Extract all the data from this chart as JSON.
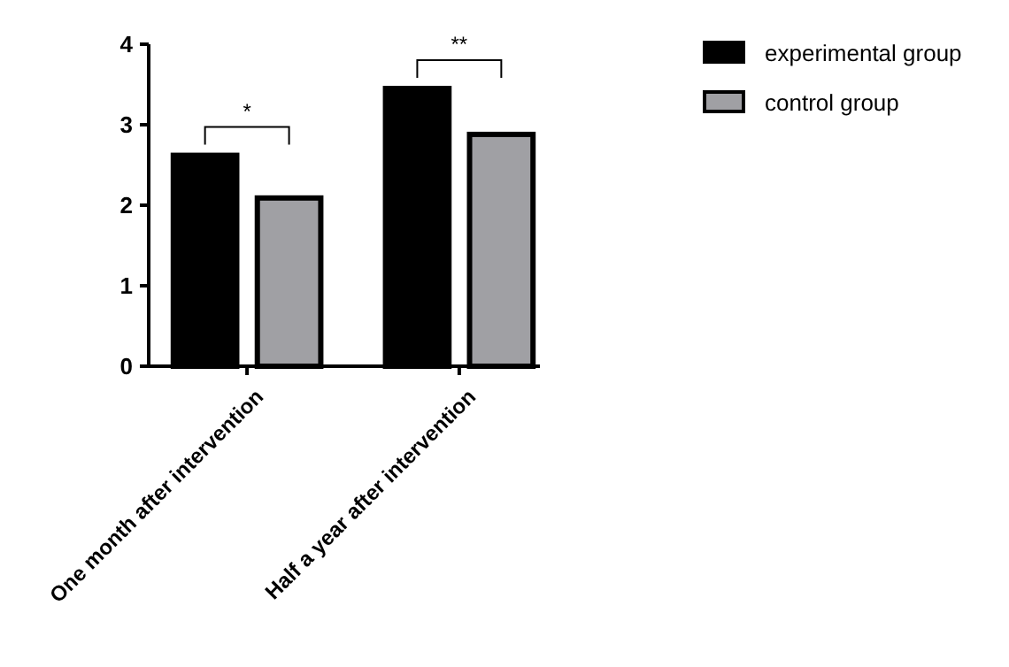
{
  "chart_data": {
    "type": "bar",
    "categories": [
      "One month after intervention",
      "Half a year after intervention"
    ],
    "series": [
      {
        "name": "experimental group",
        "color": "#000000",
        "values": [
          2.62,
          3.45
        ]
      },
      {
        "name": "control group",
        "color": "#a0a0a4",
        "values": [
          2.09,
          2.88
        ]
      }
    ],
    "ylim": [
      0,
      4
    ],
    "yticks": [
      0,
      1,
      2,
      3,
      4
    ],
    "legend": "top right",
    "grid": false,
    "annotations": [
      "*",
      "**"
    ]
  }
}
